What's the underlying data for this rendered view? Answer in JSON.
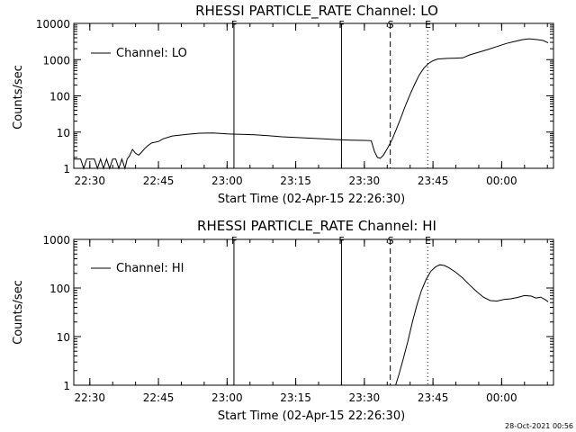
{
  "footer": "28-Oct-2021 00:56",
  "chart_data": [
    {
      "type": "line",
      "title": "RHESSI PARTICLE_RATE Channel: LO",
      "xlabel": "Start Time (02-Apr-15 22:26:30)",
      "ylabel": "Counts/sec",
      "yscale": "log",
      "xlim": [
        "22:26:30",
        "00:11:20"
      ],
      "ylim": [
        1,
        10000
      ],
      "x_ticks": [
        "22:30",
        "22:45",
        "23:00",
        "23:15",
        "23:30",
        "23:45",
        "00:00"
      ],
      "y_ticks": [
        "1",
        "10",
        "100",
        "1000",
        "10000"
      ],
      "legend": {
        "position": "top-left",
        "entries": [
          "Channel: LO"
        ]
      },
      "series": [
        {
          "name": "Channel: LO",
          "points": [
            [
              "22:26:30",
              1.8
            ],
            [
              "22:28:00",
              1.8
            ],
            [
              "22:28:40",
              1.0
            ],
            [
              "22:29:20",
              1.8
            ],
            [
              "22:30:00",
              1.8
            ],
            [
              "22:31:00",
              1.8
            ],
            [
              "22:31:40",
              1.0
            ],
            [
              "22:32:20",
              1.8
            ],
            [
              "22:33:00",
              1.0
            ],
            [
              "22:33:40",
              1.8
            ],
            [
              "22:34:20",
              1.0
            ],
            [
              "22:35:00",
              1.8
            ],
            [
              "22:35:40",
              1.8
            ],
            [
              "22:36:20",
              1.0
            ],
            [
              "22:37:00",
              1.8
            ],
            [
              "22:37:40",
              1.0
            ],
            [
              "22:38:10",
              1.8
            ],
            [
              "22:38:40",
              2.2
            ],
            [
              "22:39:20",
              3.3
            ],
            [
              "22:40:00",
              2.6
            ],
            [
              "22:40:40",
              2.3
            ],
            [
              "22:41:20",
              2.8
            ],
            [
              "22:42:00",
              3.5
            ],
            [
              "22:42:40",
              4.2
            ],
            [
              "22:43:30",
              5.0
            ],
            [
              "22:45:00",
              5.5
            ],
            [
              "22:46:00",
              6.5
            ],
            [
              "22:48:00",
              7.8
            ],
            [
              "22:51:00",
              8.6
            ],
            [
              "22:54:00",
              9.3
            ],
            [
              "22:57:00",
              9.4
            ],
            [
              "23:00:00",
              8.9
            ],
            [
              "23:03:00",
              8.7
            ],
            [
              "23:06:00",
              8.4
            ],
            [
              "23:09:00",
              8.0
            ],
            [
              "23:12:00",
              7.4
            ],
            [
              "23:15:00",
              7.1
            ],
            [
              "23:18:00",
              6.8
            ],
            [
              "23:21:00",
              6.5
            ],
            [
              "23:24:00",
              6.2
            ],
            [
              "23:27:00",
              6.0
            ],
            [
              "23:30:00",
              5.9
            ],
            [
              "23:31:30",
              5.8
            ],
            [
              "23:32:10",
              3.0
            ],
            [
              "23:32:50",
              2.0
            ],
            [
              "23:33:30",
              1.9
            ],
            [
              "23:34:10",
              2.3
            ],
            [
              "23:35:00",
              3.5
            ],
            [
              "23:36:00",
              6.0
            ],
            [
              "23:37:00",
              12
            ],
            [
              "23:38:00",
              25
            ],
            [
              "23:39:00",
              55
            ],
            [
              "23:40:00",
              110
            ],
            [
              "23:41:00",
              210
            ],
            [
              "23:42:00",
              380
            ],
            [
              "23:43:00",
              580
            ],
            [
              "23:44:00",
              780
            ],
            [
              "23:45:00",
              930
            ],
            [
              "23:46:00",
              1040
            ],
            [
              "23:48:00",
              1080
            ],
            [
              "23:50:00",
              1100
            ],
            [
              "23:51:30",
              1120
            ],
            [
              "23:53:00",
              1350
            ],
            [
              "23:55:00",
              1600
            ],
            [
              "23:57:00",
              1900
            ],
            [
              "23:59:00",
              2300
            ],
            [
              "00:01:00",
              2800
            ],
            [
              "00:03:00",
              3200
            ],
            [
              "00:04:30",
              3550
            ],
            [
              "00:06:00",
              3750
            ],
            [
              "00:07:30",
              3600
            ],
            [
              "00:09:00",
              3400
            ],
            [
              "00:10:10",
              2900
            ]
          ]
        }
      ],
      "markers": [
        {
          "label": "F",
          "time": "23:01:30",
          "style": "solid"
        },
        {
          "label": "F",
          "time": "23:25:00",
          "style": "solid"
        },
        {
          "label": "S",
          "time": "23:35:40",
          "style": "dashed"
        },
        {
          "label": "E",
          "time": "23:43:50",
          "style": "dotted"
        }
      ]
    },
    {
      "type": "line",
      "title": "RHESSI PARTICLE_RATE Channel: HI",
      "xlabel": "Start Time (02-Apr-15 22:26:30)",
      "ylabel": "Counts/sec",
      "yscale": "log",
      "xlim": [
        "22:26:30",
        "00:11:20"
      ],
      "ylim": [
        1,
        1000
      ],
      "x_ticks": [
        "22:30",
        "22:45",
        "23:00",
        "23:15",
        "23:30",
        "23:45",
        "00:00"
      ],
      "y_ticks": [
        "1",
        "10",
        "100",
        "1000"
      ],
      "legend": {
        "position": "top-left",
        "entries": [
          "Channel: HI"
        ]
      },
      "series": [
        {
          "name": "Channel: HI",
          "points": [
            [
              "23:36:50",
              1.0
            ],
            [
              "23:37:30",
              1.6
            ],
            [
              "23:38:30",
              3.5
            ],
            [
              "23:39:30",
              8
            ],
            [
              "23:40:30",
              20
            ],
            [
              "23:41:30",
              45
            ],
            [
              "23:42:30",
              90
            ],
            [
              "23:43:30",
              150
            ],
            [
              "23:44:30",
              220
            ],
            [
              "23:45:30",
              270
            ],
            [
              "23:46:30",
              300
            ],
            [
              "23:47:30",
              290
            ],
            [
              "23:48:30",
              260
            ],
            [
              "23:50:00",
              210
            ],
            [
              "23:51:30",
              160
            ],
            [
              "23:53:00",
              115
            ],
            [
              "23:54:30",
              85
            ],
            [
              "23:56:00",
              65
            ],
            [
              "23:57:30",
              55
            ],
            [
              "23:59:00",
              54
            ],
            [
              "00:00:30",
              58
            ],
            [
              "00:02:00",
              60
            ],
            [
              "00:03:30",
              64
            ],
            [
              "00:05:00",
              70
            ],
            [
              "00:06:30",
              68
            ],
            [
              "00:07:30",
              62
            ],
            [
              "00:08:30",
              65
            ],
            [
              "00:09:30",
              58
            ],
            [
              "00:10:10",
              52
            ]
          ]
        }
      ],
      "markers": [
        {
          "label": "F",
          "time": "23:01:30",
          "style": "solid"
        },
        {
          "label": "F",
          "time": "23:25:00",
          "style": "solid"
        },
        {
          "label": "S",
          "time": "23:35:40",
          "style": "dashed"
        },
        {
          "label": "E",
          "time": "23:43:50",
          "style": "dotted"
        }
      ]
    }
  ]
}
